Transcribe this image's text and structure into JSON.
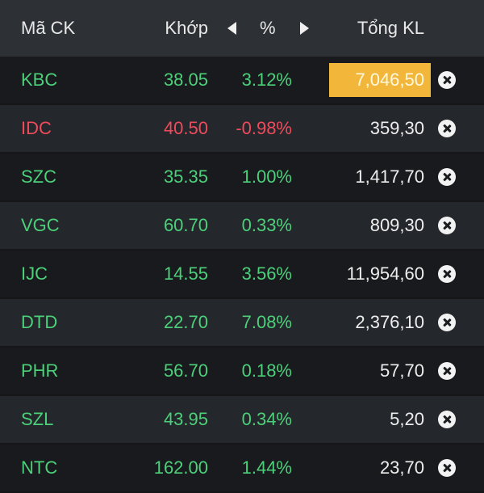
{
  "header": {
    "symbol_label": "Mã CK",
    "price_label": "Khớp",
    "percent_label": "%",
    "volume_label": "Tổng KL"
  },
  "colors": {
    "up": "#4cd07a",
    "down": "#ef4b5c",
    "highlight": "#f2b73a"
  },
  "rows": [
    {
      "symbol": "KBC",
      "price": "38.05",
      "change_pct": "3.12%",
      "volume": "7,046,50",
      "direction": "up",
      "highlighted": true
    },
    {
      "symbol": "IDC",
      "price": "40.50",
      "change_pct": "-0.98%",
      "volume": "359,30",
      "direction": "down",
      "highlighted": false
    },
    {
      "symbol": "SZC",
      "price": "35.35",
      "change_pct": "1.00%",
      "volume": "1,417,70",
      "direction": "up",
      "highlighted": false
    },
    {
      "symbol": "VGC",
      "price": "60.70",
      "change_pct": "0.33%",
      "volume": "809,30",
      "direction": "up",
      "highlighted": false
    },
    {
      "symbol": "IJC",
      "price": "14.55",
      "change_pct": "3.56%",
      "volume": "11,954,60",
      "direction": "up",
      "highlighted": false
    },
    {
      "symbol": "DTD",
      "price": "22.70",
      "change_pct": "7.08%",
      "volume": "2,376,10",
      "direction": "up",
      "highlighted": false
    },
    {
      "symbol": "PHR",
      "price": "56.70",
      "change_pct": "0.18%",
      "volume": "57,70",
      "direction": "up",
      "highlighted": false
    },
    {
      "symbol": "SZL",
      "price": "43.95",
      "change_pct": "0.34%",
      "volume": "5,20",
      "direction": "up",
      "highlighted": false
    },
    {
      "symbol": "NTC",
      "price": "162.00",
      "change_pct": "1.44%",
      "volume": "23,70",
      "direction": "up",
      "highlighted": false
    }
  ]
}
